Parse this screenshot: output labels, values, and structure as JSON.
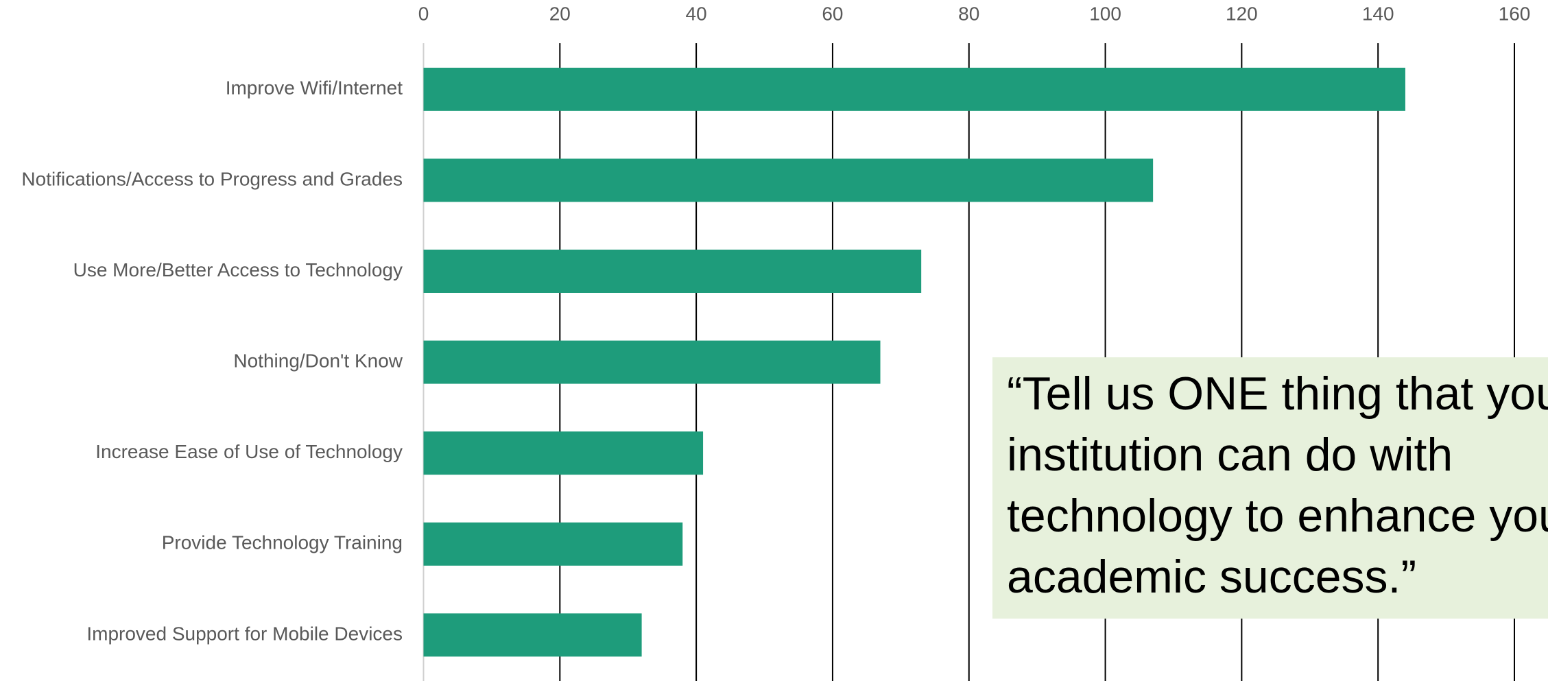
{
  "chart_data": {
    "type": "bar",
    "orientation": "horizontal",
    "categories": [
      "Improve Wifi/Internet",
      "Notifications/Access to Progress and Grades",
      "Use More/Better Access to Technology",
      "Nothing/Don't Know",
      "Increase Ease of Use of Technology",
      "Provide Technology Training",
      "Improved Support for Mobile Devices"
    ],
    "values": [
      144,
      107,
      73,
      67,
      41,
      38,
      32
    ],
    "color": "#1e9c7b",
    "xlim": [
      0,
      160
    ],
    "xticks": [
      0,
      20,
      40,
      60,
      80,
      100,
      120,
      140,
      160
    ],
    "grid": true,
    "annotation": [
      "“Tell us ONE thing that your",
      "institution can do with",
      "technology to enhance your",
      "academic success.”"
    ]
  }
}
